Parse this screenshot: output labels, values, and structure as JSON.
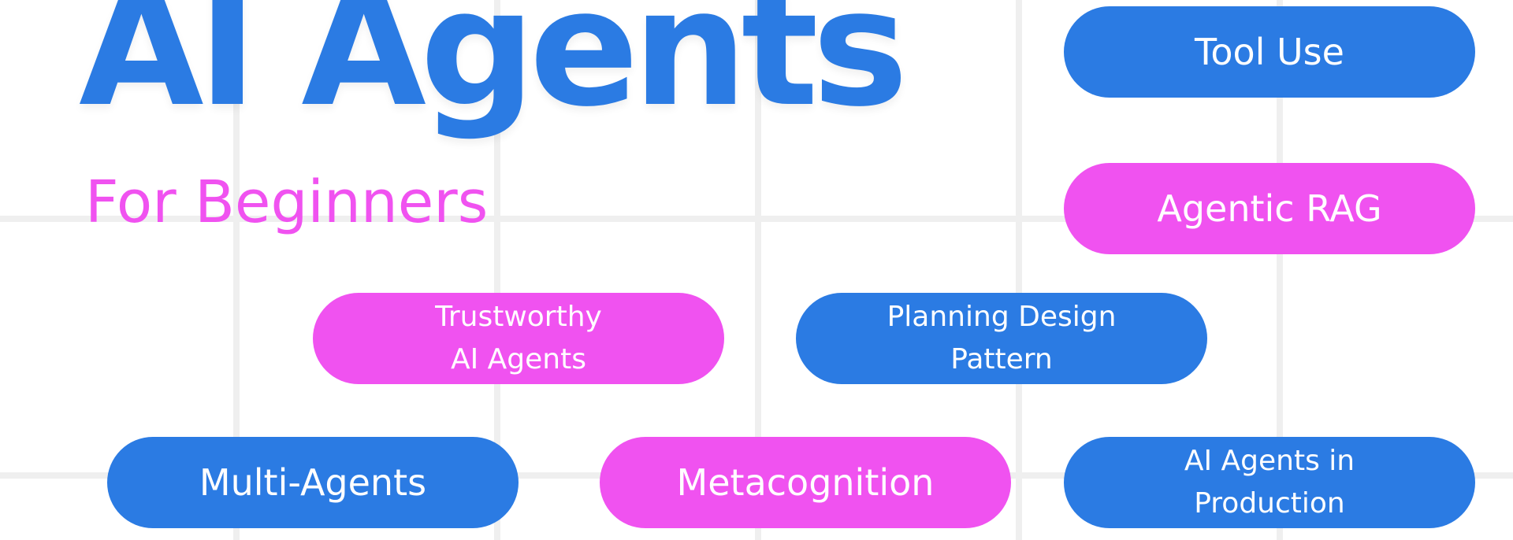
{
  "header": {
    "title": "AI Agents",
    "subtitle": "For Beginners"
  },
  "topics": [
    {
      "label": "Tool Use",
      "color": "#2b7be3"
    },
    {
      "label": "Agentic RAG",
      "color": "#f052f0"
    },
    {
      "label": "Trustworthy\nAI Agents",
      "color": "#f052f0"
    },
    {
      "label": "Planning Design\nPattern",
      "color": "#2b7be3"
    },
    {
      "label": "Multi-Agents",
      "color": "#2b7be3"
    },
    {
      "label": "Metacognition",
      "color": "#f052f0"
    },
    {
      "label": "AI Agents in\nProduction",
      "color": "#2b7be3"
    }
  ],
  "colors": {
    "blue": "#2b7be3",
    "pink": "#f052f0",
    "grid": "#efefef",
    "background": "#ffffff"
  }
}
